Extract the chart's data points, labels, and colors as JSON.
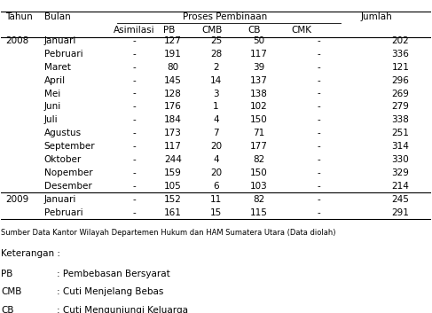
{
  "col_headers_row1": [
    "Tahun",
    "Bulan",
    "Proses Pembinaan",
    "",
    "",
    "",
    "",
    "Jumlah"
  ],
  "col_headers_row2": [
    "",
    "",
    "Asimilasi",
    "PB",
    "CMB",
    "CB",
    "CMK",
    ""
  ],
  "rows": [
    [
      "2008",
      "Januari",
      "-",
      "127",
      "25",
      "50",
      "-",
      "202"
    ],
    [
      "",
      "Pebruari",
      "-",
      "191",
      "28",
      "117",
      "-",
      "336"
    ],
    [
      "",
      "Maret",
      "-",
      "80",
      "2",
      "39",
      "-",
      "121"
    ],
    [
      "",
      "April",
      "-",
      "145",
      "14",
      "137",
      "-",
      "296"
    ],
    [
      "",
      "Mei",
      "-",
      "128",
      "3",
      "138",
      "-",
      "269"
    ],
    [
      "",
      "Juni",
      "-",
      "176",
      "1",
      "102",
      "-",
      "279"
    ],
    [
      "",
      "Juli",
      "-",
      "184",
      "4",
      "150",
      "-",
      "338"
    ],
    [
      "",
      "Agustus",
      "-",
      "173",
      "7",
      "71",
      "-",
      "251"
    ],
    [
      "",
      "September",
      "-",
      "117",
      "20",
      "177",
      "-",
      "314"
    ],
    [
      "",
      "Oktober",
      "-",
      "244",
      "4",
      "82",
      "-",
      "330"
    ],
    [
      "",
      "Nopember",
      "-",
      "159",
      "20",
      "150",
      "-",
      "329"
    ],
    [
      "",
      "Desember",
      "-",
      "105",
      "6",
      "103",
      "-",
      "214"
    ],
    [
      "2009",
      "Januari",
      "-",
      "152",
      "11",
      "82",
      "-",
      "245"
    ],
    [
      "",
      "Pebruari",
      "-",
      "161",
      "15",
      "115",
      "-",
      "291"
    ]
  ],
  "footer": "Sumber Data Kantor Wilayah Departemen Hukum dan HAM Sumatera Utara (Data diolah)",
  "keterangan_title": "Keterangan :",
  "keterangan": [
    [
      "PB",
      ": Pembebasan Bersyarat"
    ],
    [
      "CMB",
      ": Cuti Menjelang Bebas"
    ],
    [
      "CB",
      ": Cuti Mengunjungi Keluarga"
    ]
  ],
  "bg_color": "#ffffff",
  "text_color": "#000000",
  "font_size": 7.5,
  "header_font_size": 7.5
}
